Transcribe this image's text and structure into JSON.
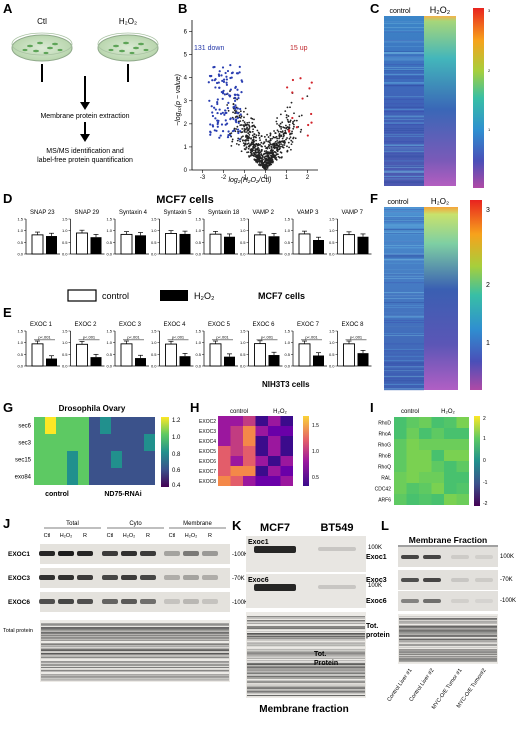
{
  "panel_letters": [
    "A",
    "B",
    "C",
    "D",
    "E",
    "F",
    "G",
    "H",
    "I",
    "J",
    "K",
    "L"
  ],
  "panelA": {
    "dish_ctl": "Ctl",
    "dish_h2o2": "H₂O₂",
    "step1": "Membrane protein extraction",
    "step2_line1": "MS/MS identification and",
    "step2_line2": "label-free protein quantification"
  },
  "panelB": {
    "ylabel": "−log₁₀(p − value)",
    "xlabel": "log₂(H₂O₂/Ctl)",
    "down_label": "131 down",
    "up_label": "15 up",
    "x_ticks": [
      "-3",
      "-2",
      "-1",
      "0",
      "1",
      "2"
    ],
    "y_ticks": [
      "0",
      "1",
      "2",
      "3",
      "4",
      "5",
      "6"
    ]
  },
  "panelC": {
    "col1": "control",
    "col2": "H₂O₂",
    "scale_ticks": [
      "3",
      "2",
      "1"
    ]
  },
  "panelF": {
    "col1": "control",
    "col2": "H₂O₂",
    "scale_ticks": [
      "3",
      "2",
      "1"
    ]
  },
  "panelD": {
    "title": "MCF7 cells",
    "legend_control": "control",
    "legend_h2o2": "H₂O₂",
    "footer": "MCF7 cells",
    "charts": [
      {
        "name": "SNAP 23",
        "control": 0.82,
        "h2o2": 0.77
      },
      {
        "name": "SNAP 29",
        "control": 0.9,
        "h2o2": 0.72
      },
      {
        "name": "Syntaxin 4",
        "control": 0.84,
        "h2o2": 0.8
      },
      {
        "name": "Syntaxin 5",
        "control": 0.88,
        "h2o2": 0.86
      },
      {
        "name": "Syntaxin 18",
        "control": 0.85,
        "h2o2": 0.74
      },
      {
        "name": "VAMP 2",
        "control": 0.82,
        "h2o2": 0.76
      },
      {
        "name": "VAMP 3",
        "control": 0.86,
        "h2o2": 0.6
      },
      {
        "name": "VAMP 7",
        "control": 0.83,
        "h2o2": 0.74
      }
    ]
  },
  "panelE": {
    "footer": "NIH3T3 cells",
    "charts": [
      {
        "name": "EXOC 1",
        "pval": "p<.001",
        "control": 0.95,
        "h2o2": 0.32
      },
      {
        "name": "EXOC 2",
        "pval": "p<.001",
        "control": 0.93,
        "h2o2": 0.38
      },
      {
        "name": "EXOC 3",
        "pval": "p<.001",
        "control": 0.95,
        "h2o2": 0.34
      },
      {
        "name": "EXOC 4",
        "pval": "p<.001",
        "control": 0.94,
        "h2o2": 0.42
      },
      {
        "name": "EXOC 5",
        "pval": "p<.001",
        "control": 0.95,
        "h2o2": 0.4
      },
      {
        "name": "EXOC 6",
        "pval": "p<.001",
        "control": 0.96,
        "h2o2": 0.47
      },
      {
        "name": "EXOC 7",
        "pval": "p<.001",
        "control": 0.95,
        "h2o2": 0.45
      },
      {
        "name": "EXOC 8",
        "pval": "p<.001",
        "control": 0.95,
        "h2o2": 0.55
      }
    ],
    "y_ticks": [
      "1.5",
      "1.0",
      "0.5",
      "0.0"
    ]
  },
  "panelG": {
    "title": "Drosophila Ovary",
    "rows": [
      "sec6",
      "sec3",
      "sec15",
      "exo84"
    ],
    "cols_left": "control",
    "cols_right": "ND75-RNAi",
    "scale_ticks": [
      "1.2",
      "1.0",
      "0.8",
      "0.6",
      "0.4"
    ]
  },
  "panelH": {
    "col1": "control",
    "col2": "H₂O₂",
    "rows": [
      "EXOC2",
      "EXOC3",
      "EXOC4",
      "EXOC5",
      "EXOC6",
      "EXOC7",
      "EXOC8"
    ],
    "scale_ticks": [
      "1.5",
      "1.0",
      "0.5"
    ]
  },
  "panelI": {
    "col1": "control",
    "col2": "H₂O₂",
    "rows": [
      "RhoD",
      "RhoA",
      "RhoG",
      "RhoB",
      "RhoQ",
      "RAL",
      "CDC42",
      "ARF6"
    ],
    "scale_ticks": [
      "2",
      "1",
      "0",
      "-1",
      "-2"
    ]
  },
  "panelJ": {
    "groups": [
      "Total",
      "Cyto",
      "Membrane"
    ],
    "lanes": [
      "Ctl",
      "H₂O₂",
      "R",
      "Ctl",
      "H₂O₂",
      "R",
      "Ctl",
      "H₂O₂",
      "R"
    ],
    "rows": [
      "EXOC1",
      "EXOC3",
      "EXOC6"
    ],
    "markers": [
      "-100K",
      "-70K",
      "-100K"
    ],
    "total_label": "Total protein"
  },
  "panelK": {
    "col1": "MCF7",
    "col2": "BT549",
    "rows": [
      "Exoc1",
      "Exoc6"
    ],
    "markers": [
      "100K",
      "100K"
    ],
    "tot_line1": "Tot.",
    "tot_line2": "Protein",
    "footer": "Membrane fraction"
  },
  "panelL": {
    "title": "Membrane Fraction",
    "rows": [
      "Exoc1",
      "Exoc3",
      "Exoc6"
    ],
    "markers": [
      "100K",
      "-70K",
      "-100K"
    ],
    "tot_line1": "Tot.",
    "tot_line2": "protein",
    "lanes": [
      "Control Liver #1",
      "Control Liver #2",
      "MYC-O/E Tumor #1",
      "MYC-O/E Tumor#2"
    ]
  }
}
